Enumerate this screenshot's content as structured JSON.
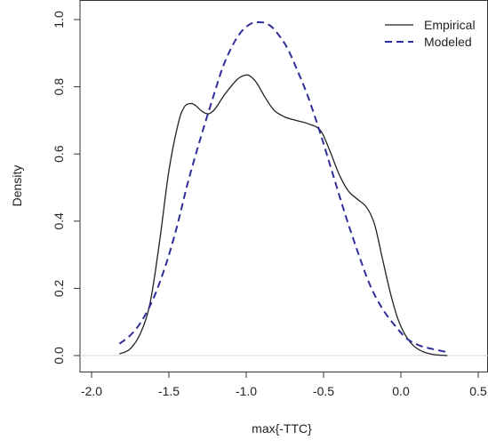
{
  "chart_data": {
    "type": "line",
    "xlabel": "max{-TTC}",
    "ylabel": "Density",
    "xlim": [
      -2.0,
      0.5
    ],
    "ylim": [
      0.0,
      1.0
    ],
    "xticks": [
      "-2.0",
      "-1.5",
      "-1.0",
      "-0.5",
      "0.0",
      "0.5"
    ],
    "yticks": [
      "0.0",
      "0.2",
      "0.4",
      "0.6",
      "0.8",
      "1.0"
    ],
    "legend_position": "top-right",
    "grid": false,
    "baseline_y": 0.0,
    "series": [
      {
        "name": "Empirical",
        "style": "solid",
        "color": "#222222",
        "x": [
          -1.82,
          -1.75,
          -1.68,
          -1.62,
          -1.56,
          -1.5,
          -1.44,
          -1.4,
          -1.36,
          -1.33,
          -1.28,
          -1.24,
          -1.2,
          -1.15,
          -1.1,
          -1.05,
          -1.0,
          -0.97,
          -0.93,
          -0.88,
          -0.82,
          -0.75,
          -0.68,
          -0.6,
          -0.52,
          -0.46,
          -0.4,
          -0.34,
          -0.28,
          -0.22,
          -0.17,
          -0.12,
          -0.07,
          -0.02,
          0.03,
          0.08,
          0.14,
          0.2,
          0.26,
          0.3
        ],
        "y": [
          0.005,
          0.02,
          0.07,
          0.16,
          0.34,
          0.55,
          0.69,
          0.74,
          0.75,
          0.745,
          0.725,
          0.72,
          0.735,
          0.77,
          0.8,
          0.825,
          0.835,
          0.83,
          0.81,
          0.77,
          0.73,
          0.71,
          0.7,
          0.69,
          0.67,
          0.61,
          0.54,
          0.49,
          0.465,
          0.44,
          0.39,
          0.29,
          0.19,
          0.11,
          0.06,
          0.03,
          0.012,
          0.004,
          0.001,
          0.0
        ]
      },
      {
        "name": "Modeled",
        "style": "dashed",
        "color": "#2e2e9a",
        "x": [
          -1.82,
          -1.75,
          -1.68,
          -1.6,
          -1.52,
          -1.45,
          -1.38,
          -1.3,
          -1.22,
          -1.15,
          -1.08,
          -1.02,
          -0.96,
          -0.92,
          -0.88,
          -0.84,
          -0.8,
          -0.74,
          -0.68,
          -0.6,
          -0.52,
          -0.44,
          -0.36,
          -0.28,
          -0.2,
          -0.12,
          -0.04,
          0.04,
          0.12,
          0.2,
          0.3
        ],
        "y": [
          0.035,
          0.06,
          0.1,
          0.17,
          0.27,
          0.38,
          0.51,
          0.64,
          0.76,
          0.86,
          0.93,
          0.97,
          0.99,
          0.992,
          0.99,
          0.98,
          0.96,
          0.92,
          0.86,
          0.77,
          0.66,
          0.54,
          0.42,
          0.31,
          0.21,
          0.14,
          0.09,
          0.05,
          0.03,
          0.02,
          0.01
        ]
      }
    ]
  }
}
